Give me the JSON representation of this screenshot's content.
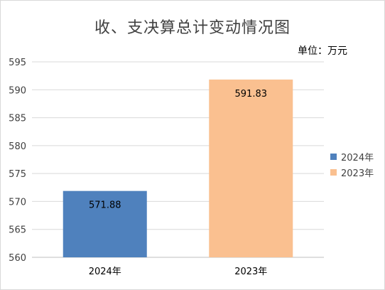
{
  "chart_data": {
    "type": "bar",
    "title": "收、支决算总计变动情况图",
    "unit_label": "单位：万元",
    "categories": [
      "2024年",
      "2023年"
    ],
    "values": [
      571.88,
      591.83
    ],
    "data_labels": [
      "571.88",
      "591.83"
    ],
    "colors": [
      "#4f81bd",
      "#fac090"
    ],
    "ylim": [
      560,
      595
    ],
    "yticks": [
      560,
      565,
      570,
      575,
      580,
      585,
      590,
      595
    ],
    "grid": true,
    "legend_position": "right",
    "legend": [
      {
        "name": "2024年",
        "color": "#4f81bd"
      },
      {
        "name": "2023年",
        "color": "#fac090"
      }
    ],
    "xlabel": "",
    "ylabel": ""
  }
}
